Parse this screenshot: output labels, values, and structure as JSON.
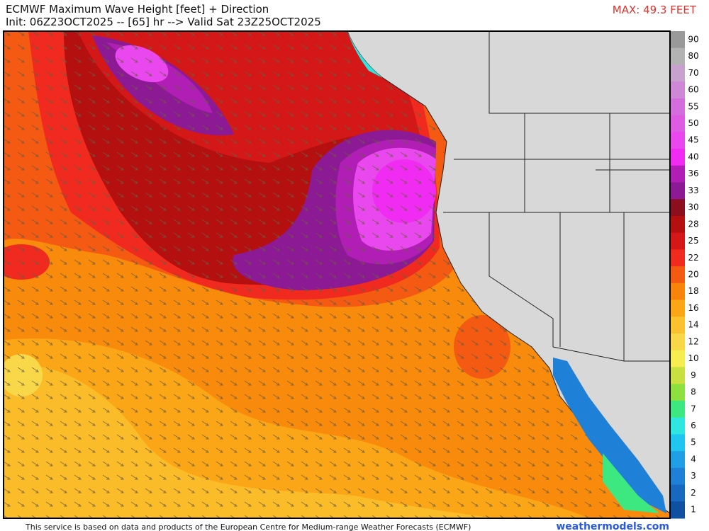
{
  "header": {
    "title": "ECMWF Maximum Wave Height [feet] + Direction",
    "subtitle": "Init: 06Z23OCT2025 -- [65] hr --> Valid Sat 23Z25OCT2025",
    "max_label": "MAX: 49.3 FEET"
  },
  "legend": [
    {
      "value": 90,
      "color": "#999999"
    },
    {
      "value": 80,
      "color": "#b3b3b3"
    },
    {
      "value": 70,
      "color": "#c6a2cc"
    },
    {
      "value": 60,
      "color": "#cf88d6"
    },
    {
      "value": 55,
      "color": "#d46edc"
    },
    {
      "value": 50,
      "color": "#de5ce2"
    },
    {
      "value": 45,
      "color": "#e848ee"
    },
    {
      "value": 40,
      "color": "#f02cf2"
    },
    {
      "value": 36,
      "color": "#b01eb6"
    },
    {
      "value": 33,
      "color": "#8c1a94"
    },
    {
      "value": 30,
      "color": "#8b0f1e"
    },
    {
      "value": 28,
      "color": "#b41010"
    },
    {
      "value": 25,
      "color": "#d41818"
    },
    {
      "value": 22,
      "color": "#f02a1e"
    },
    {
      "value": 20,
      "color": "#f45a12"
    },
    {
      "value": 18,
      "color": "#f8840c"
    },
    {
      "value": 16,
      "color": "#faa616"
    },
    {
      "value": 14,
      "color": "#fbc230"
    },
    {
      "value": 12,
      "color": "#f8d848"
    },
    {
      "value": 10,
      "color": "#f6ee50"
    },
    {
      "value": 9,
      "color": "#c8e040"
    },
    {
      "value": 8,
      "color": "#8ee040"
    },
    {
      "value": 7,
      "color": "#3ee880"
    },
    {
      "value": 6,
      "color": "#30e6e0"
    },
    {
      "value": 5,
      "color": "#20c6f0"
    },
    {
      "value": 4,
      "color": "#209ee6"
    },
    {
      "value": 3,
      "color": "#1e80d6"
    },
    {
      "value": 2,
      "color": "#1868c0"
    },
    {
      "value": 1,
      "color": "#1050a0"
    }
  ],
  "footer": {
    "credit": "This service is based on data and products of the European Centre for Medium-range Weather Forecasts (ECMWF)",
    "site": "weathermodels.com"
  }
}
